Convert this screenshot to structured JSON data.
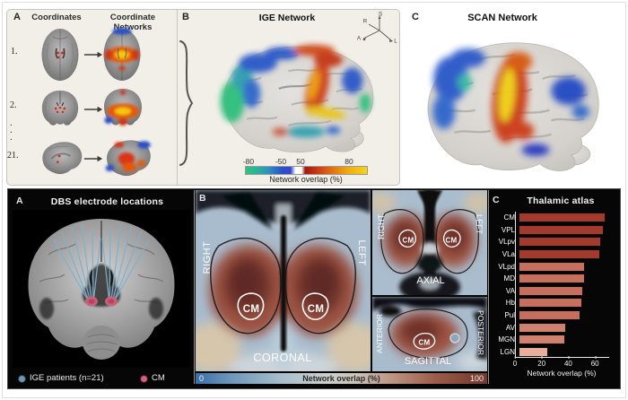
{
  "top": {
    "panel_a": {
      "label": "A",
      "col_coordinates": "Coordinates",
      "col_networks": "Coordinate Networks",
      "row_numbers": [
        "1.",
        "2.",
        "21."
      ],
      "dots": [
        ".",
        ".",
        "."
      ]
    },
    "panel_b": {
      "label": "B",
      "title": "IGE Network",
      "compass": {
        "s": "S",
        "r": "R",
        "a": "A",
        "l": "L"
      },
      "colorbar": {
        "ticks": [
          "-80",
          "-50",
          "50",
          "80"
        ],
        "label": "Network overlap (%)",
        "negative_end_color": "#2ec27e",
        "negative_mid_color": "#2b50c8",
        "positive_mid_color": "#c63515",
        "positive_end_color": "#f4d418"
      }
    },
    "panel_c": {
      "label": "C",
      "title": "SCAN Network"
    }
  },
  "bottom": {
    "panel_a": {
      "label": "A",
      "title": "DBS electrode locations",
      "legend": {
        "ige": {
          "label": "IGE patients (n=21)",
          "color": "#6d98b4"
        },
        "cm": {
          "label": "CM",
          "color": "#d4607a"
        }
      }
    },
    "panel_b": {
      "label": "B",
      "cm": "CM",
      "view_coronal": "CORONAL",
      "view_axial": "AXIAL",
      "view_sagittal": "SAGITTAL",
      "dir_right": "RIGHT",
      "dir_left": "LEFT",
      "dir_anterior": "ANTERIOR",
      "dir_posterior": "POSTERIOR",
      "colorbar": {
        "min": "0",
        "max": "100",
        "label": "Network overlap (%)"
      }
    },
    "panel_c": {
      "label": "C"
    }
  },
  "chart_data": {
    "type": "bar",
    "orientation": "horizontal",
    "title": "Thalamic atlas",
    "categories": [
      "CM",
      "VPL",
      "VLpv",
      "VLa",
      "VLpd",
      "MD",
      "VA",
      "Hb",
      "Pul",
      "AV",
      "MGN",
      "LGN"
    ],
    "values": [
      67,
      66,
      64,
      63,
      51,
      51,
      50,
      49,
      48,
      37,
      36,
      23
    ],
    "bar_colors": [
      "#a33a2e",
      "#a33a2e",
      "#a33a2e",
      "#a33a2e",
      "#c76f5e",
      "#c76f5e",
      "#c76f5e",
      "#c76f5e",
      "#c76f5e",
      "#cf8170",
      "#cf8170",
      "#e8af9b"
    ],
    "xlabel": "Network overlap (%)",
    "xticks": [
      0,
      20,
      40,
      60
    ],
    "xlim": [
      0,
      70
    ],
    "grid": false,
    "background": "#0a0a0a",
    "text_color": "#ffffff"
  }
}
